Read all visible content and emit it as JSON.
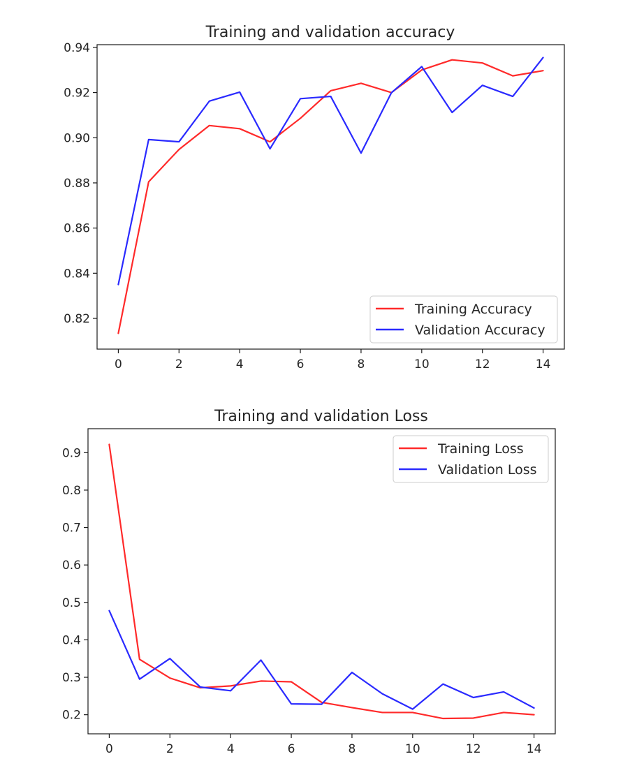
{
  "chart_data": [
    {
      "type": "line",
      "title": "Training and validation accuracy",
      "xlabel": "",
      "ylabel": "",
      "x": [
        0,
        1,
        2,
        3,
        4,
        5,
        6,
        7,
        8,
        9,
        10,
        11,
        12,
        13,
        14
      ],
      "xlim": [
        -0.7,
        14.7
      ],
      "ylim": [
        0.8064,
        0.9412
      ],
      "xticks": [
        0,
        2,
        4,
        6,
        8,
        10,
        12,
        14
      ],
      "yticks": [
        0.82,
        0.84,
        0.86,
        0.88,
        0.9,
        0.92,
        0.94
      ],
      "ytick_labels": [
        "0.82",
        "0.84",
        "0.86",
        "0.88",
        "0.90",
        "0.92",
        "0.94"
      ],
      "grid": false,
      "legend_position": "lower-right",
      "series": [
        {
          "name": "Training Accuracy",
          "color": "#ff2a2a",
          "values": [
            0.8134,
            0.8805,
            0.8948,
            0.9054,
            0.904,
            0.8982,
            0.9086,
            0.9208,
            0.9241,
            0.92,
            0.93,
            0.9345,
            0.9331,
            0.9274,
            0.9297
          ]
        },
        {
          "name": "Validation Accuracy",
          "color": "#2a2aff",
          "values": [
            0.835,
            0.8992,
            0.8982,
            0.9162,
            0.9202,
            0.8951,
            0.9173,
            0.9183,
            0.8932,
            0.9199,
            0.9315,
            0.9112,
            0.9232,
            0.9183,
            0.9355
          ]
        }
      ]
    },
    {
      "type": "line",
      "title": "Training and validation Loss",
      "xlabel": "",
      "ylabel": "",
      "x": [
        0,
        1,
        2,
        3,
        4,
        5,
        6,
        7,
        8,
        9,
        10,
        11,
        12,
        13,
        14
      ],
      "xlim": [
        -0.7,
        14.7
      ],
      "ylim": [
        0.149,
        0.964
      ],
      "xticks": [
        0,
        2,
        4,
        6,
        8,
        10,
        12,
        14
      ],
      "yticks": [
        0.2,
        0.3,
        0.4,
        0.5,
        0.6,
        0.7,
        0.8,
        0.9
      ],
      "ytick_labels": [
        "0.2",
        "0.3",
        "0.4",
        "0.5",
        "0.6",
        "0.7",
        "0.8",
        "0.9"
      ],
      "grid": false,
      "legend_position": "upper-right",
      "series": [
        {
          "name": "Training Loss",
          "color": "#ff2a2a",
          "values": [
            0.922,
            0.348,
            0.298,
            0.272,
            0.277,
            0.29,
            0.288,
            0.233,
            0.219,
            0.206,
            0.206,
            0.19,
            0.191,
            0.206,
            0.2
          ]
        },
        {
          "name": "Validation Loss",
          "color": "#2a2aff",
          "values": [
            0.478,
            0.295,
            0.35,
            0.274,
            0.264,
            0.346,
            0.229,
            0.228,
            0.313,
            0.256,
            0.215,
            0.282,
            0.246,
            0.261,
            0.218
          ]
        }
      ]
    }
  ]
}
